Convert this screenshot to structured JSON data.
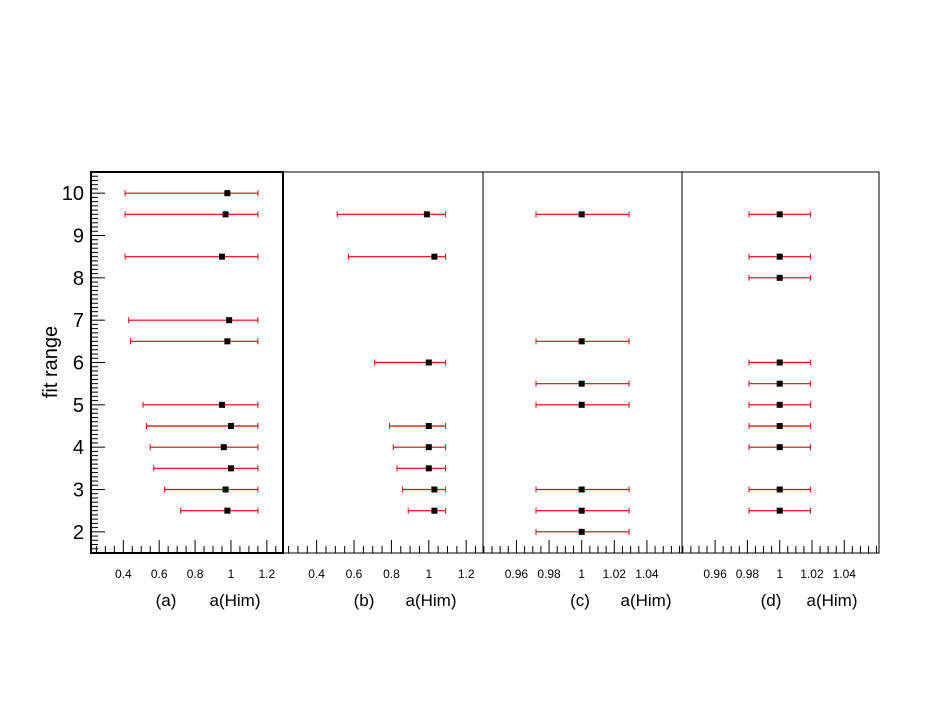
{
  "chart_data": {
    "type": "scatter",
    "ylabel": "fit range",
    "ylim": [
      1.5,
      10.5
    ],
    "yticks": [
      "2",
      "3",
      "4",
      "5",
      "6",
      "7",
      "8",
      "9",
      "10"
    ],
    "colors": {
      "point": "#000000",
      "error_bar": "#e8000b",
      "frame": "#000000"
    },
    "panels": [
      {
        "label": "(a)",
        "xlabel": "a(Him)",
        "xlim": [
          0.22,
          1.29
        ],
        "xtick_values": [
          0.4,
          0.6,
          0.8,
          1.0,
          1.2
        ],
        "xtick_labels": [
          "0.4",
          "0.6",
          "0.8",
          "1",
          "1.2"
        ],
        "points": [
          {
            "y": 10,
            "x": 0.98,
            "xerr_low": 0.41,
            "xerr_high": 1.15
          },
          {
            "y": 9.5,
            "x": 0.97,
            "xerr_low": 0.41,
            "xerr_high": 1.15
          },
          {
            "y": 8.5,
            "x": 0.95,
            "xerr_low": 0.41,
            "xerr_high": 1.15
          },
          {
            "y": 7,
            "x": 0.99,
            "xerr_low": 0.43,
            "xerr_high": 1.15
          },
          {
            "y": 6.5,
            "x": 0.98,
            "xerr_low": 0.44,
            "xerr_high": 1.15
          },
          {
            "y": 5,
            "x": 0.95,
            "xerr_low": 0.51,
            "xerr_high": 1.15
          },
          {
            "y": 4.5,
            "x": 1.0,
            "xerr_low": 0.53,
            "xerr_high": 1.15
          },
          {
            "y": 4,
            "x": 0.96,
            "xerr_low": 0.55,
            "xerr_high": 1.15
          },
          {
            "y": 3.5,
            "x": 1.0,
            "xerr_low": 0.57,
            "xerr_high": 1.15
          },
          {
            "y": 3,
            "x": 0.97,
            "xerr_low": 0.63,
            "xerr_high": 1.15
          },
          {
            "y": 2.5,
            "x": 0.98,
            "xerr_low": 0.72,
            "xerr_high": 1.15
          }
        ]
      },
      {
        "label": "(b)",
        "xlabel": "a(Him)",
        "xlim": [
          0.22,
          1.29
        ],
        "xtick_values": [
          0.4,
          0.6,
          0.8,
          1.0,
          1.2
        ],
        "xtick_labels": [
          "0.4",
          "0.6",
          "0.8",
          "1",
          "1.2"
        ],
        "points": [
          {
            "y": 9.5,
            "x": 0.99,
            "xerr_low": 0.51,
            "xerr_high": 1.09
          },
          {
            "y": 8.5,
            "x": 1.03,
            "xerr_low": 0.57,
            "xerr_high": 1.09
          },
          {
            "y": 6,
            "x": 1.0,
            "xerr_low": 0.71,
            "xerr_high": 1.09
          },
          {
            "y": 4.5,
            "x": 1.0,
            "xerr_low": 0.79,
            "xerr_high": 1.09
          },
          {
            "y": 4,
            "x": 1.0,
            "xerr_low": 0.81,
            "xerr_high": 1.09
          },
          {
            "y": 3.5,
            "x": 1.0,
            "xerr_low": 0.83,
            "xerr_high": 1.09
          },
          {
            "y": 3,
            "x": 1.03,
            "xerr_low": 0.86,
            "xerr_high": 1.09
          },
          {
            "y": 2.5,
            "x": 1.03,
            "xerr_low": 0.89,
            "xerr_high": 1.09
          }
        ]
      },
      {
        "label": "(c)",
        "xlabel": "a(Him)",
        "xlim": [
          0.9395,
          1.0615
        ],
        "xtick_values": [
          0.96,
          0.98,
          1.0,
          1.02,
          1.04
        ],
        "xtick_labels": [
          "0.96",
          "0.98",
          "1",
          "1.02",
          "1.04"
        ],
        "points": [
          {
            "y": 9.5,
            "x": 1.0,
            "xerr_low": 0.972,
            "xerr_high": 1.029
          },
          {
            "y": 6.5,
            "x": 1.0,
            "xerr_low": 0.972,
            "xerr_high": 1.029
          },
          {
            "y": 5.5,
            "x": 1.0,
            "xerr_low": 0.972,
            "xerr_high": 1.029
          },
          {
            "y": 5,
            "x": 1.0,
            "xerr_low": 0.972,
            "xerr_high": 1.029
          },
          {
            "y": 3,
            "x": 1.0,
            "xerr_low": 0.972,
            "xerr_high": 1.029
          },
          {
            "y": 2.5,
            "x": 1.0,
            "xerr_low": 0.972,
            "xerr_high": 1.029
          },
          {
            "y": 2,
            "x": 1.0,
            "xerr_low": 0.972,
            "xerr_high": 1.029
          }
        ]
      },
      {
        "label": "(d)",
        "xlabel": "a(Him)",
        "xlim": [
          0.9395,
          1.0615
        ],
        "xtick_values": [
          0.96,
          0.98,
          1.0,
          1.02,
          1.04
        ],
        "xtick_labels": [
          "0.96",
          "0.98",
          "1",
          "1.02",
          "1.04"
        ],
        "points": [
          {
            "y": 9.5,
            "x": 1.0,
            "xerr_low": 0.981,
            "xerr_high": 1.019
          },
          {
            "y": 8.5,
            "x": 1.0,
            "xerr_low": 0.981,
            "xerr_high": 1.019
          },
          {
            "y": 8,
            "x": 1.0,
            "xerr_low": 0.981,
            "xerr_high": 1.019
          },
          {
            "y": 6,
            "x": 1.0,
            "xerr_low": 0.981,
            "xerr_high": 1.019
          },
          {
            "y": 5.5,
            "x": 1.0,
            "xerr_low": 0.981,
            "xerr_high": 1.019
          },
          {
            "y": 5,
            "x": 1.0,
            "xerr_low": 0.981,
            "xerr_high": 1.019
          },
          {
            "y": 4.5,
            "x": 1.0,
            "xerr_low": 0.981,
            "xerr_high": 1.019
          },
          {
            "y": 4,
            "x": 1.0,
            "xerr_low": 0.981,
            "xerr_high": 1.019
          },
          {
            "y": 3,
            "x": 1.0,
            "xerr_low": 0.981,
            "xerr_high": 1.019
          },
          {
            "y": 2.5,
            "x": 1.0,
            "xerr_low": 0.981,
            "xerr_high": 1.019
          }
        ]
      }
    ]
  }
}
